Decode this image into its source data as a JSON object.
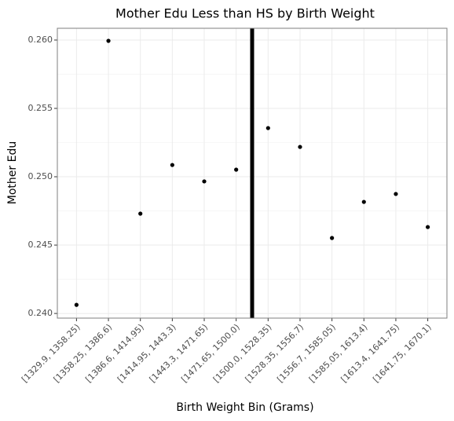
{
  "chart_data": {
    "type": "scatter",
    "title": "Mother Edu Less than HS by Birth Weight",
    "x_label": "Birth Weight Bin (Grams)",
    "y_label": "Mother Edu",
    "categories": [
      "[1329.9, 1358.25)",
      "[1358.25, 1386.6)",
      "[1386.6, 1414.95)",
      "[1414.95, 1443.3)",
      "[1443.3, 1471.65)",
      "[1471.65, 1500.0)",
      "[1500.0, 1528.35)",
      "[1528.35, 1556.7)",
      "[1556.7, 1585.05)",
      "[1585.05, 1613.4)",
      "[1613.4, 1641.75)",
      "[1641.75, 1670.1)"
    ],
    "values": [
      0.24063,
      0.25994,
      0.2473,
      0.25086,
      0.24966,
      0.25052,
      0.25356,
      0.25218,
      0.24552,
      0.24816,
      0.24874,
      0.24632
    ],
    "color": "#000000",
    "vline_at": 5.5,
    "ylim": [
      0.23966,
      0.26086
    ],
    "yticks": [
      {
        "value": 0.24,
        "label": "0.240"
      },
      {
        "value": 0.245,
        "label": "0.245"
      },
      {
        "value": 0.25,
        "label": "0.250"
      },
      {
        "value": 0.255,
        "label": "0.255"
      },
      {
        "value": 0.26,
        "label": "0.260"
      }
    ],
    "grid": true
  }
}
